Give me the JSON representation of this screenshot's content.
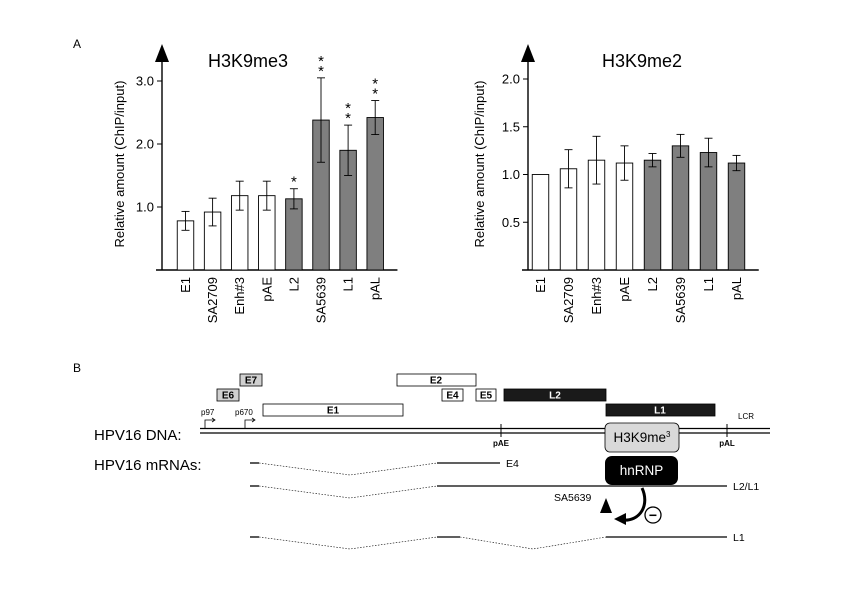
{
  "panels": {
    "a": "A",
    "b": "B"
  },
  "chart_data": [
    {
      "type": "bar",
      "title": "H3K9me3",
      "ylabel": "Relative amount (ChIP/input)",
      "categories": [
        "E1",
        "SA2709",
        "Enh#3",
        "pAE",
        "L2",
        "SA5639",
        "L1",
        "pAL"
      ],
      "values": [
        0.78,
        0.92,
        1.18,
        1.18,
        1.13,
        2.38,
        1.9,
        2.42
      ],
      "errors": [
        0.15,
        0.22,
        0.23,
        0.23,
        0.16,
        0.67,
        0.4,
        0.27
      ],
      "fill": [
        "white",
        "white",
        "white",
        "white",
        "gray",
        "gray",
        "gray",
        "gray"
      ],
      "significance": [
        "",
        "",
        "",
        "",
        "*",
        "**",
        "**",
        "**"
      ],
      "yticks": [
        1.0,
        2.0,
        3.0
      ],
      "ytick_labels": [
        "1.0",
        "2.0",
        "3.0"
      ],
      "ylim": [
        0,
        3.4
      ],
      "grid": false,
      "colors": {
        "white": "#ffffff",
        "gray": "#7f7f7f"
      }
    },
    {
      "type": "bar",
      "title": "H3K9me2",
      "ylabel": "Relative amount (ChIP/input)",
      "categories": [
        "E1",
        "SA2709",
        "Enh#3",
        "pAE",
        "L2",
        "SA5639",
        "L1",
        "pAL"
      ],
      "values": [
        1.0,
        1.06,
        1.15,
        1.12,
        1.15,
        1.3,
        1.23,
        1.12
      ],
      "errors": [
        0,
        0.2,
        0.25,
        0.18,
        0.07,
        0.12,
        0.15,
        0.08
      ],
      "fill": [
        "white",
        "white",
        "white",
        "white",
        "gray",
        "gray",
        "gray",
        "gray"
      ],
      "significance": [
        "",
        "",
        "",
        "",
        "",
        "",
        "",
        ""
      ],
      "yticks": [
        0.5,
        1.0,
        1.5,
        2.0
      ],
      "ytick_labels": [
        "0.5",
        "1.0",
        "1.5",
        "2.0"
      ],
      "ylim": [
        0,
        2.2
      ],
      "grid": false,
      "colors": {
        "white": "#ffffff",
        "gray": "#7f7f7f"
      }
    }
  ],
  "genome": {
    "early_genes": [
      "E7",
      "E6",
      "E1",
      "E2",
      "E4",
      "E5"
    ],
    "late_genes": [
      "L2",
      "L1"
    ],
    "promoters": [
      "p97",
      "p670"
    ],
    "dna_label": "HPV16 DNA:",
    "mrna_label": "HPV16 mRNAs:",
    "pae": "pAE",
    "pal": "pAL",
    "lcr": "LCR",
    "mark": "H3K9me",
    "mark_sup": "3",
    "protein": "hnRNP",
    "splice_site": "SA5639",
    "inhibit_symbol": "−",
    "transcripts": [
      "E4",
      "L2/L1",
      "L1"
    ],
    "colors": {
      "light_box": "#d0d0d0",
      "dark_box": "#1a1a1a",
      "mark_box": "#d9d9d9",
      "protein_box": "#000000"
    }
  }
}
